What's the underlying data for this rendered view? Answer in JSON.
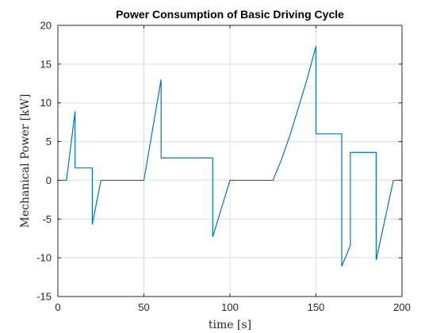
{
  "chart_data": {
    "type": "line",
    "title": "Power Consumption of Basic Driving Cycle",
    "xlabel": "time [s]",
    "ylabel": "Mechanical Power [kW]",
    "xlim": [
      0,
      200
    ],
    "ylim": [
      -15,
      20
    ],
    "xticks": [
      0,
      50,
      100,
      150,
      200
    ],
    "yticks": [
      -15,
      -10,
      -5,
      0,
      5,
      10,
      15,
      20
    ],
    "xtick_labels": [
      "0",
      "50",
      "100",
      "150",
      "200"
    ],
    "ytick_labels": [
      "-15",
      "-10",
      "-5",
      "0",
      "5",
      "10",
      "15",
      "20"
    ],
    "grid": true,
    "series": [
      {
        "color": "#0072BD",
        "x": [
          0,
          5,
          10,
          10,
          20,
          20,
          25,
          50,
          60,
          60,
          90,
          90,
          100,
          125,
          130,
          135,
          140,
          145,
          150,
          150,
          165,
          165,
          170,
          170,
          185,
          185,
          195,
          200
        ],
        "y": [
          0,
          0,
          8.9,
          1.6,
          1.6,
          -5.7,
          0,
          0,
          13.0,
          2.9,
          2.9,
          -7.3,
          0,
          0,
          2.7,
          5.9,
          9.5,
          13.2,
          17.3,
          6.0,
          6.0,
          -11.1,
          -8.4,
          3.6,
          3.6,
          -10.3,
          0,
          0
        ]
      }
    ]
  }
}
